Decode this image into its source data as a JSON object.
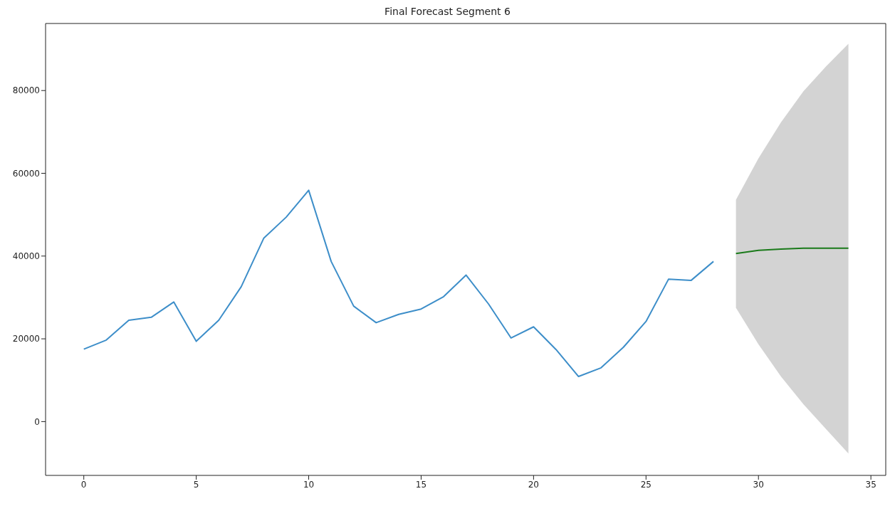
{
  "chart_data": {
    "type": "line",
    "title": "Final Forecast Segment 6",
    "xlim": [
      -1.7,
      35.66
    ],
    "xticks": [
      0,
      5,
      10,
      15,
      20,
      25,
      30,
      35
    ],
    "ylim": [
      -13000,
      96200
    ],
    "yticks": [
      0,
      20000,
      40000,
      60000,
      80000
    ],
    "series": [
      {
        "color": "#3d8ec9",
        "x": [
          0,
          1,
          2,
          3,
          4,
          5,
          6,
          7,
          8,
          9,
          10,
          11,
          12,
          13,
          14,
          15,
          16,
          17,
          18,
          19,
          20,
          21,
          22,
          23,
          24,
          25,
          26,
          27,
          28
        ],
        "values": [
          17500,
          19700,
          24500,
          25200,
          28900,
          19400,
          24500,
          32600,
          44300,
          49400,
          55900,
          38700,
          27900,
          23900,
          25900,
          27200,
          30200,
          35400,
          28400,
          20200,
          22900,
          17400,
          10900,
          13000,
          18000,
          24200,
          34400,
          34100,
          38700
        ]
      },
      {
        "color": "#1a7a1a",
        "x": [
          29,
          30,
          31,
          32,
          33,
          34
        ],
        "values": [
          40600,
          41400,
          41700,
          41900,
          41900,
          41900
        ],
        "lower": [
          27500,
          18700,
          10900,
          4200,
          -1800,
          -7700
        ],
        "upper": [
          53600,
          63600,
          72300,
          79800,
          85800,
          91300
        ]
      }
    ]
  }
}
